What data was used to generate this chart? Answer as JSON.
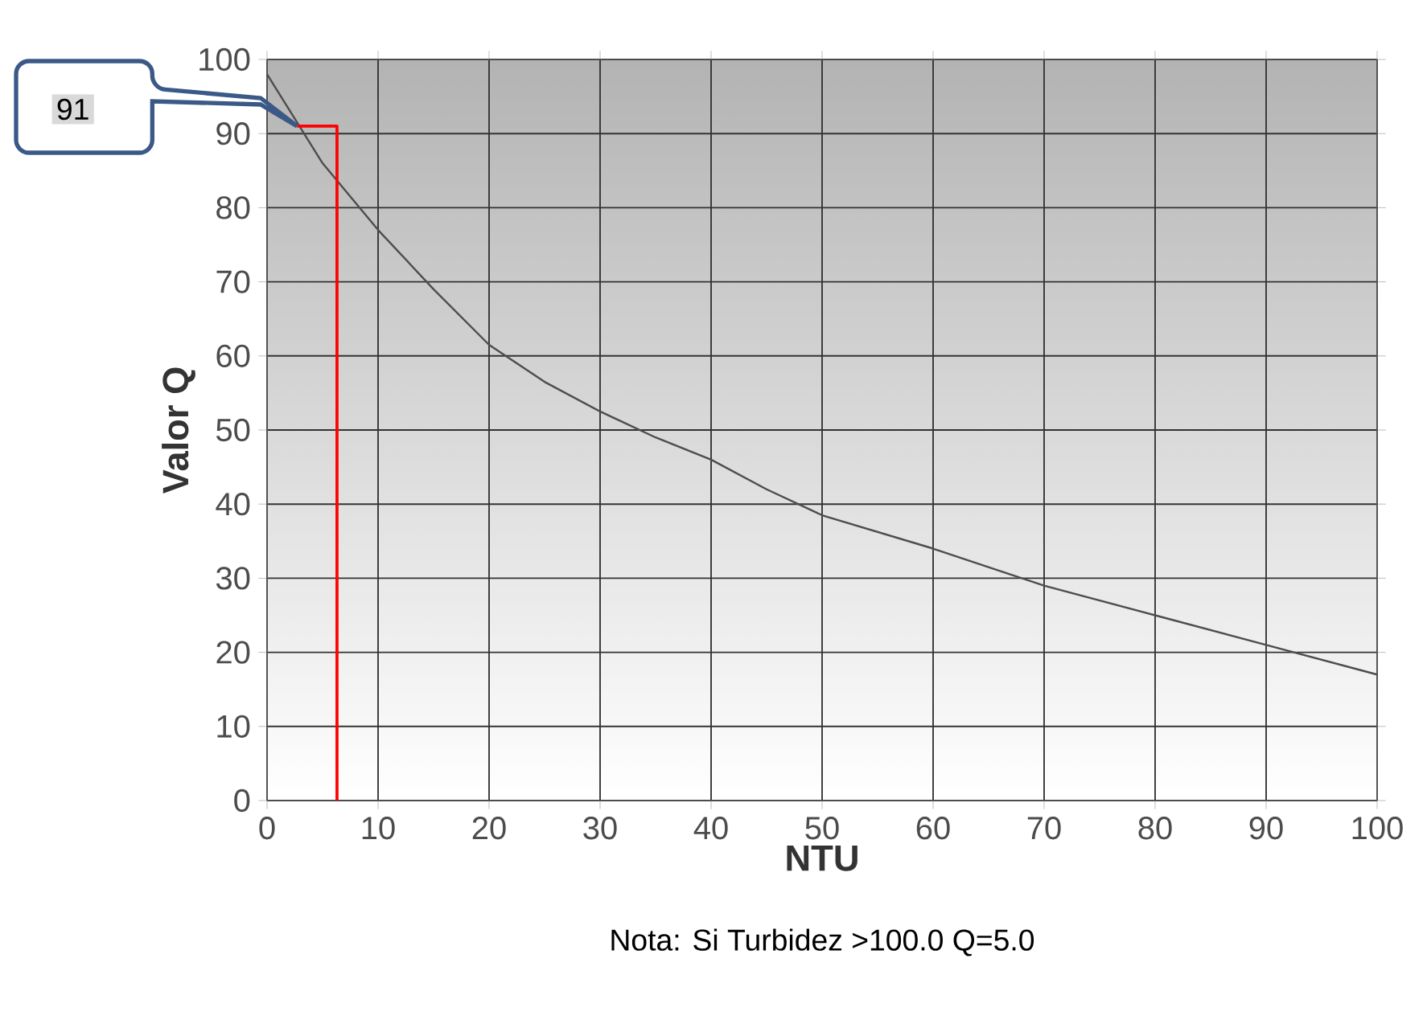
{
  "chart_data": {
    "type": "line",
    "xlabel": "NTU",
    "ylabel": "Valor Q",
    "xlim": [
      0,
      100
    ],
    "ylim": [
      0,
      100
    ],
    "xticks": [
      0,
      10,
      20,
      30,
      40,
      50,
      60,
      70,
      80,
      90,
      100
    ],
    "yticks": [
      0,
      10,
      20,
      30,
      40,
      50,
      60,
      70,
      80,
      90,
      100
    ],
    "grid": true,
    "series": [
      {
        "color": "#4d4d4d",
        "x": [
          0,
          5,
          10,
          15,
          20,
          25,
          30,
          35,
          40,
          45,
          50,
          60,
          70,
          80,
          90,
          100
        ],
        "values": [
          98,
          86,
          77,
          69,
          61.5,
          56.5,
          52.5,
          49,
          46,
          42,
          38.5,
          34,
          29,
          25,
          21,
          17
        ]
      },
      {
        "color": "#ff0000",
        "x": [
          2.7,
          6.3,
          6.3
        ],
        "values": [
          91,
          91,
          0
        ]
      }
    ],
    "annotations": [
      "91",
      "Nota: Si Turbidez >100.0  Q=5.0"
    ]
  }
}
